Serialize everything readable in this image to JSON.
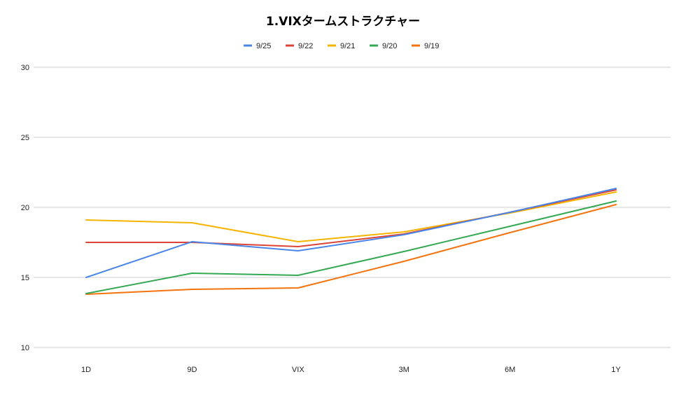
{
  "chart_data": {
    "type": "line",
    "title": "1.VIXタームストラクチャー",
    "categories": [
      "1D",
      "9D",
      "VIX",
      "3M",
      "6M",
      "1Y"
    ],
    "yticks": [
      10,
      15,
      20,
      25,
      30
    ],
    "ylim": [
      10,
      30
    ],
    "grid": true,
    "legend_position": "top",
    "series": [
      {
        "name": "9/25",
        "color": "#4a86e8",
        "values": [
          15.0,
          17.55,
          16.9,
          18.05,
          19.65,
          21.35
        ]
      },
      {
        "name": "9/22",
        "color": "#db4437",
        "values": [
          17.5,
          17.5,
          17.2,
          18.1,
          19.65,
          21.25
        ]
      },
      {
        "name": "9/21",
        "color": "#f4b400",
        "values": [
          19.1,
          18.9,
          17.55,
          18.25,
          19.6,
          21.1
        ]
      },
      {
        "name": "9/20",
        "color": "#34a853",
        "values": [
          13.85,
          15.3,
          15.15,
          16.85,
          18.65,
          20.45
        ]
      },
      {
        "name": "9/19",
        "color": "#f4730f",
        "values": [
          13.8,
          14.15,
          14.25,
          16.15,
          18.2,
          20.2
        ]
      }
    ]
  }
}
